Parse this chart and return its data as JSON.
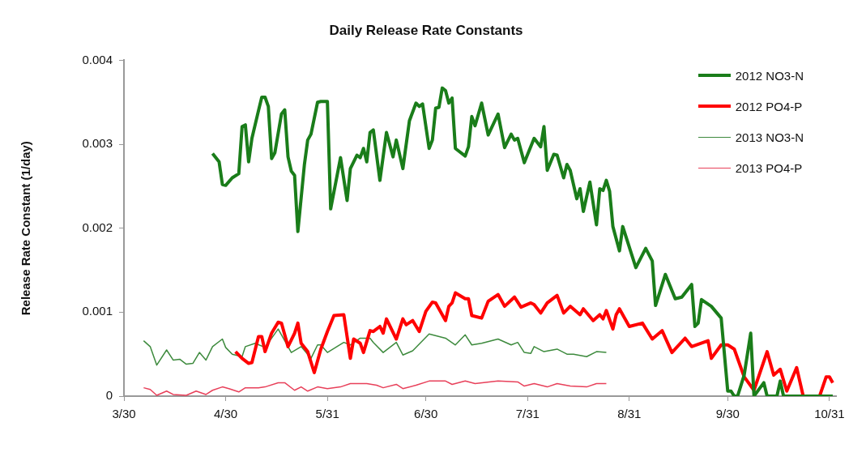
{
  "chart_data": {
    "type": "line",
    "title": "Daily Release Rate Constants",
    "ylabel": "Release Rate Constant (1/day)",
    "xlim": [
      "--03-30",
      "--11-02"
    ],
    "xticks": [
      {
        "value": "--03-30",
        "label": "3/30"
      },
      {
        "value": "--04-30",
        "label": "4/30"
      },
      {
        "value": "--05-31",
        "label": "5/31"
      },
      {
        "value": "--06-30",
        "label": "6/30"
      },
      {
        "value": "--07-31",
        "label": "7/31"
      },
      {
        "value": "--08-31",
        "label": "8/31"
      },
      {
        "value": "--09-30",
        "label": "9/30"
      },
      {
        "value": "--10-31",
        "label": "10/31"
      }
    ],
    "ylim": [
      0,
      0.004
    ],
    "yticks": [
      0,
      0.001,
      0.002,
      0.003,
      0.004
    ],
    "grid": false,
    "legend": "top right",
    "marker": "none",
    "line_style": "solid",
    "series": [
      {
        "name": "2012 NO3-N",
        "color": "#1a7d1a",
        "x": [
          "--04-26",
          "--04-28",
          "--04-29",
          "--04-30",
          "--05-02",
          "--05-04",
          "--05-05",
          "--05-06",
          "--05-07",
          "--05-08",
          "--05-10",
          "--05-11",
          "--05-12",
          "--05-13",
          "--05-14",
          "--05-15",
          "--05-17",
          "--05-18",
          "--05-19",
          "--05-20",
          "--05-21",
          "--05-22",
          "--05-24",
          "--05-25",
          "--05-26",
          "--05-28",
          "--05-29",
          "--05-31",
          "--06-01",
          "--06-04",
          "--06-06",
          "--06-07",
          "--06-09",
          "--06-10",
          "--06-11",
          "--06-12",
          "--06-13",
          "--06-14",
          "--06-16",
          "--06-18",
          "--06-20",
          "--06-21",
          "--06-23",
          "--06-25",
          "--06-27",
          "--06-28",
          "--06-29",
          "--07-01",
          "--07-02",
          "--07-03",
          "--07-04",
          "--07-05",
          "--07-06",
          "--07-07",
          "--07-08",
          "--07-09",
          "--07-12",
          "--07-13",
          "--07-14",
          "--07-15",
          "--07-17",
          "--07-19",
          "--07-22",
          "--07-24",
          "--07-26",
          "--07-27",
          "--07-28",
          "--07-30",
          "--08-02",
          "--08-04",
          "--08-05",
          "--08-06",
          "--08-08",
          "--08-09",
          "--08-11",
          "--08-12",
          "--08-13",
          "--08-15",
          "--08-16",
          "--08-17",
          "--08-19",
          "--08-21",
          "--08-22",
          "--08-23",
          "--08-24",
          "--08-25",
          "--08-26",
          "--08-28",
          "--08-29",
          "--09-02",
          "--09-05",
          "--09-07",
          "--09-08",
          "--09-11",
          "--09-14",
          "--09-16",
          "--09-19",
          "--09-20",
          "--09-21",
          "--09-22",
          "--09-25",
          "--09-28",
          "--09-30",
          "--10-01",
          "--10-02",
          "--10-03",
          "--10-05",
          "--10-07",
          "--10-08",
          "--10-11",
          "--10-12",
          "--10-15",
          "--10-16",
          "--10-17",
          "--11-01"
        ],
        "values": [
          0.00289,
          0.00279,
          0.00252,
          0.00251,
          0.0026,
          0.00265,
          0.00321,
          0.00323,
          0.00279,
          0.00307,
          0.0034,
          0.00356,
          0.00356,
          0.00345,
          0.00283,
          0.0029,
          0.00336,
          0.00341,
          0.00285,
          0.00268,
          0.00263,
          0.00196,
          0.00276,
          0.00305,
          0.00312,
          0.0035,
          0.00351,
          0.00351,
          0.00223,
          0.00284,
          0.00233,
          0.00271,
          0.00287,
          0.00284,
          0.00295,
          0.00279,
          0.00314,
          0.00317,
          0.00257,
          0.00314,
          0.00285,
          0.00305,
          0.00271,
          0.00328,
          0.00349,
          0.00345,
          0.00348,
          0.00295,
          0.00305,
          0.00343,
          0.00344,
          0.00367,
          0.00364,
          0.00349,
          0.00355,
          0.00295,
          0.00286,
          0.00297,
          0.00333,
          0.00322,
          0.00349,
          0.00311,
          0.00336,
          0.00296,
          0.00312,
          0.00305,
          0.00307,
          0.00278,
          0.00307,
          0.00297,
          0.00321,
          0.00269,
          0.00288,
          0.00287,
          0.0026,
          0.00276,
          0.00269,
          0.00235,
          0.00247,
          0.0022,
          0.00255,
          0.00204,
          0.00247,
          0.00245,
          0.00257,
          0.00244,
          0.00202,
          0.00173,
          0.00202,
          0.00153,
          0.00176,
          0.00161,
          0.00108,
          0.00145,
          0.00116,
          0.00118,
          0.00133,
          0.00083,
          0.00087,
          0.00115,
          0.00107,
          0.00093,
          6e-05,
          6e-05,
          0,
          0,
          0.00025,
          0.00075,
          0,
          0.00016,
          0,
          0,
          0.00018,
          0,
          0
        ]
      },
      {
        "name": "2012 PO4-P",
        "color": "#ff0000",
        "x": [
          "--05-03",
          "--05-05",
          "--05-07",
          "--05-08",
          "--05-10",
          "--05-11",
          "--05-12",
          "--05-14",
          "--05-16",
          "--05-17",
          "--05-19",
          "--05-21",
          "--05-22",
          "--05-23",
          "--05-25",
          "--05-27",
          "--05-29",
          "--05-31",
          "--06-02",
          "--06-05",
          "--06-07",
          "--06-08",
          "--06-10",
          "--06-11",
          "--06-13",
          "--06-14",
          "--06-16",
          "--06-17",
          "--06-18",
          "--06-21",
          "--06-23",
          "--06-24",
          "--06-26",
          "--06-28",
          "--06-30",
          "--07-02",
          "--07-03",
          "--07-06",
          "--07-07",
          "--07-08",
          "--07-09",
          "--07-12",
          "--07-13",
          "--07-14",
          "--07-17",
          "--07-19",
          "--07-22",
          "--07-24",
          "--07-27",
          "--07-29",
          "--08-01",
          "--08-02",
          "--08-04",
          "--08-06",
          "--08-09",
          "--08-11",
          "--08-13",
          "--08-16",
          "--08-17",
          "--08-20",
          "--08-22",
          "--08-23",
          "--08-24",
          "--08-26",
          "--08-27",
          "--08-28",
          "--08-31",
          "--09-04",
          "--09-07",
          "--09-10",
          "--09-13",
          "--09-17",
          "--09-19",
          "--09-24",
          "--09-25",
          "--09-28",
          "--09-30",
          "--10-02",
          "--10-05",
          "--10-08",
          "--10-12",
          "--10-14",
          "--10-16",
          "--10-18",
          "--10-21",
          "--10-23",
          "--10-28",
          "--10-30",
          "--10-31",
          "--11-01"
        ],
        "values": [
          0.00053,
          0.00045,
          0.00039,
          0.0004,
          0.00071,
          0.00071,
          0.00053,
          0.00075,
          0.00088,
          0.00087,
          0.00059,
          0.00075,
          0.00087,
          0.00063,
          0.00053,
          0.00028,
          0.00056,
          0.00077,
          0.00096,
          0.00097,
          0.00045,
          0.00068,
          0.00063,
          0.00052,
          0.00078,
          0.00077,
          0.00083,
          0.00075,
          0.00092,
          0.00068,
          0.00092,
          0.00085,
          0.0009,
          0.00077,
          0.00101,
          0.00112,
          0.00111,
          0.0009,
          0.00107,
          0.00111,
          0.00123,
          0.00116,
          0.00116,
          0.00096,
          0.00093,
          0.00113,
          0.00121,
          0.00107,
          0.00118,
          0.00106,
          0.00111,
          0.00109,
          0.00099,
          0.00111,
          0.0012,
          0.00099,
          0.00107,
          0.00097,
          0.00104,
          0.0009,
          0.00097,
          0.00092,
          0.00102,
          0.0008,
          0.00097,
          0.00104,
          0.00083,
          0.00087,
          0.00068,
          0.00078,
          0.00052,
          0.00069,
          0.00059,
          0.00066,
          0.00045,
          0.00061,
          0.00061,
          0.00056,
          0.00023,
          7e-05,
          0.00053,
          0.00025,
          0.00032,
          6e-05,
          0.00034,
          0,
          0,
          0.00023,
          0.00023,
          0.00016
        ]
      },
      {
        "name": "2013 NO3-N",
        "color": "#3d8a3d",
        "x": [
          "--04-05",
          "--04-07",
          "--04-09",
          "--04-12",
          "--04-14",
          "--04-16",
          "--04-18",
          "--04-20",
          "--04-22",
          "--04-24",
          "--04-26",
          "--04-29",
          "--04-30",
          "--05-02",
          "--05-05",
          "--05-06",
          "--05-09",
          "--05-12",
          "--05-16",
          "--05-20",
          "--05-23",
          "--05-26",
          "--05-28",
          "--05-29",
          "--05-31",
          "--06-05",
          "--06-07",
          "--06-10",
          "--06-13",
          "--06-14",
          "--06-17",
          "--06-21",
          "--06-23",
          "--06-26",
          "--07-01",
          "--07-06",
          "--07-09",
          "--07-12",
          "--07-14",
          "--07-17",
          "--07-22",
          "--07-26",
          "--07-28",
          "--07-30",
          "--08-01",
          "--08-02",
          "--08-05",
          "--08-09",
          "--08-12",
          "--08-14",
          "--08-18",
          "--08-21",
          "--08-24"
        ],
        "values": [
          0.00066,
          0.00059,
          0.00037,
          0.00055,
          0.00043,
          0.00044,
          0.00038,
          0.00039,
          0.00052,
          0.00043,
          0.00059,
          0.00068,
          0.00058,
          0.0005,
          0.00047,
          0.00059,
          0.00063,
          0.00058,
          0.0008,
          0.00052,
          0.00059,
          0.00045,
          0.00061,
          0.00061,
          0.00052,
          0.00064,
          0.00061,
          0.00069,
          0.00069,
          0.00064,
          0.00052,
          0.00064,
          0.00049,
          0.00054,
          0.00074,
          0.00069,
          0.00061,
          0.00073,
          0.00061,
          0.00063,
          0.00068,
          0.00061,
          0.00064,
          0.00052,
          0.00051,
          0.00059,
          0.00053,
          0.00056,
          0.0005,
          0.0005,
          0.00047,
          0.00053,
          0.00052
        ]
      },
      {
        "name": "2013 PO4-P",
        "color": "#e8405a",
        "x": [
          "--04-05",
          "--04-07",
          "--04-09",
          "--04-12",
          "--04-14",
          "--04-18",
          "--04-21",
          "--04-24",
          "--04-26",
          "--04-29",
          "--05-01",
          "--05-04",
          "--05-06",
          "--05-10",
          "--05-12",
          "--05-16",
          "--05-18",
          "--05-21",
          "--05-23",
          "--05-25",
          "--05-28",
          "--05-31",
          "--06-04",
          "--06-07",
          "--06-12",
          "--06-15",
          "--06-17",
          "--06-21",
          "--06-23",
          "--06-27",
          "--07-01",
          "--07-06",
          "--07-08",
          "--07-12",
          "--07-15",
          "--07-22",
          "--07-28",
          "--07-30",
          "--08-02",
          "--08-06",
          "--08-09",
          "--08-13",
          "--08-18",
          "--08-21",
          "--08-24"
        ],
        "values": [
          0.0001,
          8e-05,
          1e-05,
          6e-05,
          2e-05,
          1e-05,
          6e-05,
          2e-05,
          7e-05,
          0.00011,
          9e-05,
          5e-05,
          0.0001,
          0.0001,
          0.00011,
          0.00016,
          0.00016,
          7e-05,
          0.00011,
          6e-05,
          0.00011,
          9e-05,
          0.00011,
          0.00015,
          0.00015,
          0.00013,
          0.0001,
          0.00014,
          9e-05,
          0.00013,
          0.00018,
          0.00018,
          0.00014,
          0.00018,
          0.00015,
          0.00018,
          0.00017,
          0.00012,
          0.00015,
          0.00011,
          0.00015,
          0.00012,
          0.00011,
          0.00015,
          0.00015
        ]
      }
    ]
  }
}
